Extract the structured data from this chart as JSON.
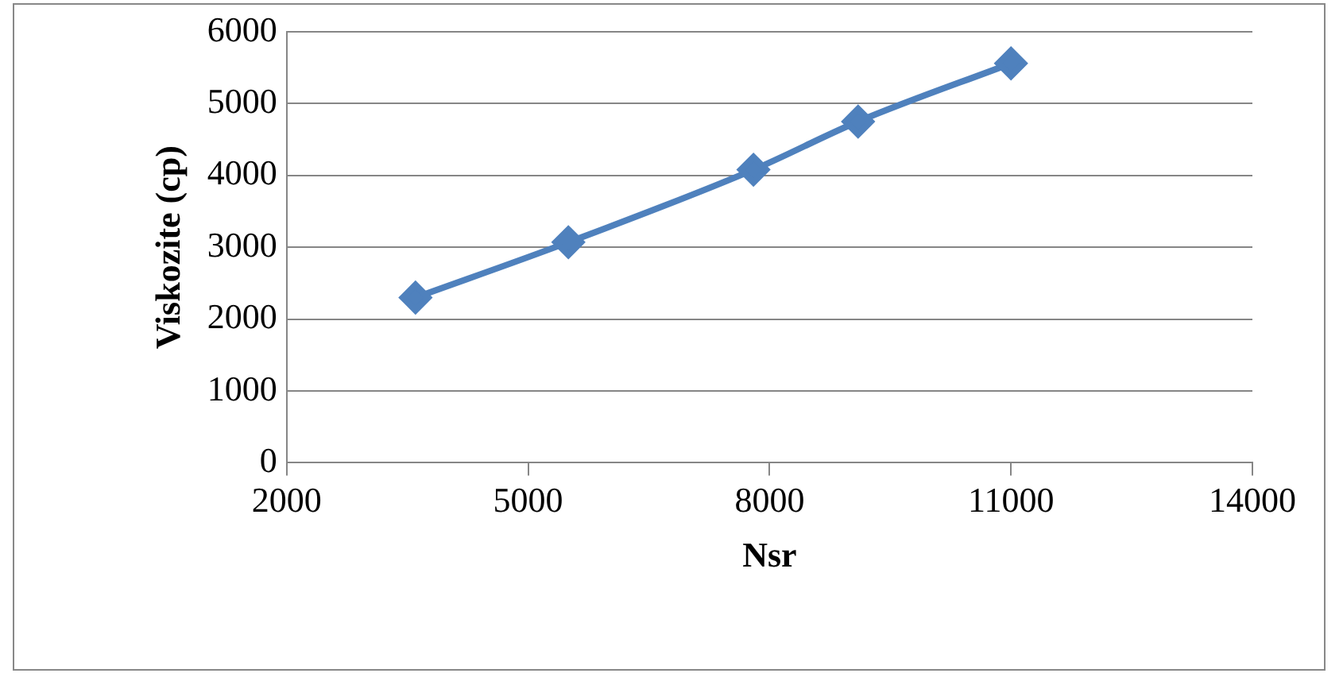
{
  "chart_data": {
    "type": "line",
    "xlabel": "Nsr",
    "ylabel": "Viskozite (cp)",
    "x": [
      3600,
      5500,
      7800,
      9100,
      11000
    ],
    "series": [
      {
        "color": "#4f81bd",
        "values": [
          2300,
          3070,
          4080,
          4750,
          5560
        ]
      }
    ],
    "xlim": [
      2000,
      14000
    ],
    "xticks": [
      2000,
      5000,
      8000,
      11000,
      14000
    ],
    "ylim": [
      0,
      6000
    ],
    "yticks": [
      0,
      1000,
      2000,
      3000,
      4000,
      5000,
      6000
    ],
    "grid": "y",
    "marker": "diamond",
    "line_style": "solid",
    "legend": false
  }
}
